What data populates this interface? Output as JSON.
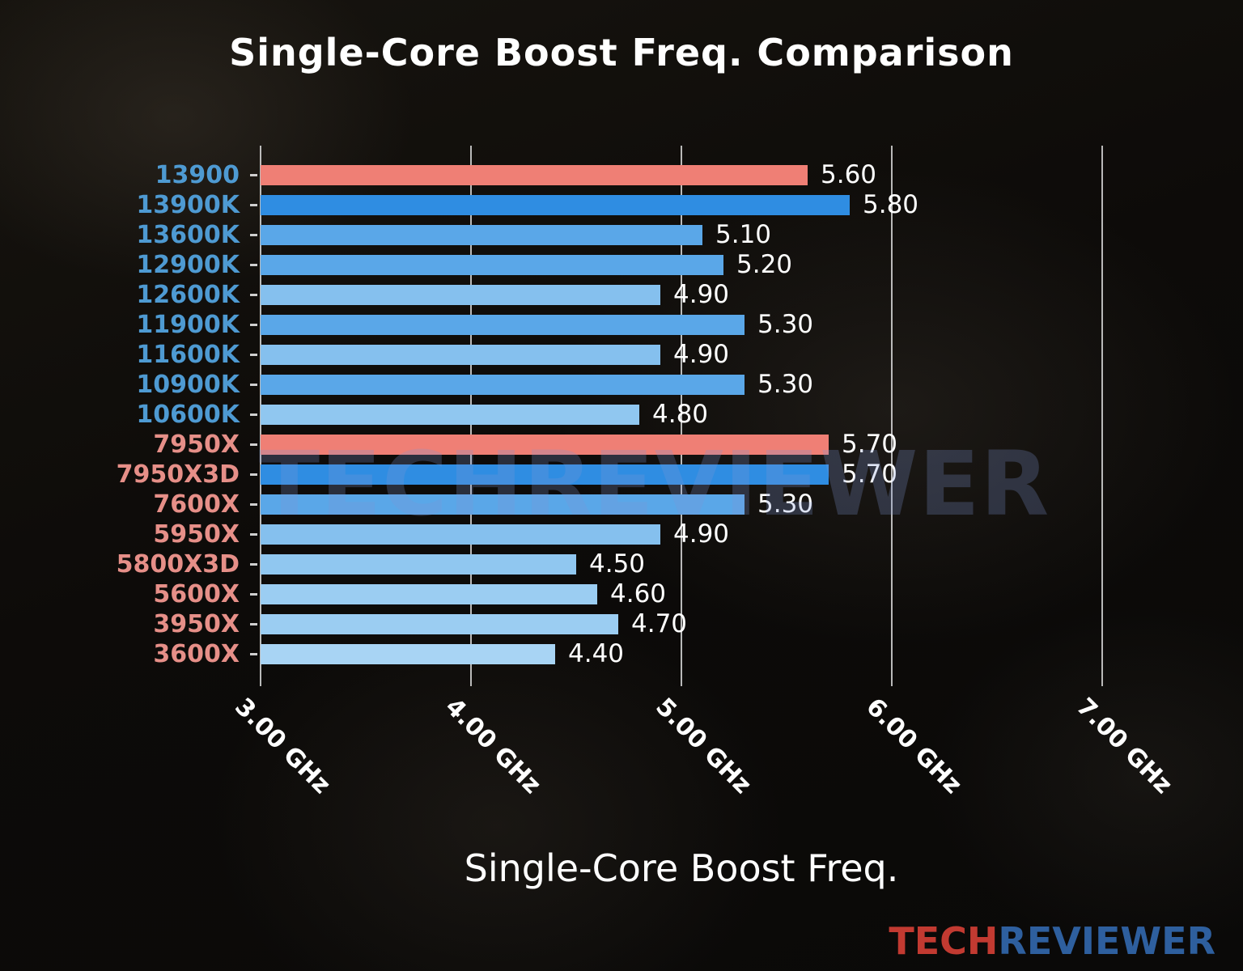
{
  "title": "Single-Core Boost Freq. Comparison",
  "watermark": "TECHREVIEWER",
  "logo": {
    "tech": "TECH",
    "reviewer": "REVIEWER"
  },
  "chart_data": {
    "type": "bar",
    "orientation": "horizontal",
    "title": "Single-Core Boost Freq. Comparison",
    "xlabel": "Single-Core Boost Freq.",
    "ylabel": "",
    "xlim": [
      3.0,
      7.5
    ],
    "grid": true,
    "legend": false,
    "x_ticks": [
      {
        "value": 3.0,
        "label": "3.00 GHz"
      },
      {
        "value": 4.0,
        "label": "4.00 GHz"
      },
      {
        "value": 5.0,
        "label": "5.00 GHz"
      },
      {
        "value": 6.0,
        "label": "6.00 GHz"
      },
      {
        "value": 7.0,
        "label": "7.00 GHz"
      }
    ],
    "categories": [
      "13900",
      "13900K",
      "13600K",
      "12900K",
      "12600K",
      "11900K",
      "11600K",
      "10900K",
      "10600K",
      "7950X",
      "7950X3D",
      "7600X",
      "5950X",
      "5800X3D",
      "5600X",
      "3950X",
      "3600X"
    ],
    "values": [
      5.6,
      5.8,
      5.1,
      5.2,
      4.9,
      5.3,
      4.9,
      5.3,
      4.8,
      5.7,
      5.7,
      5.3,
      4.9,
      4.5,
      4.6,
      4.7,
      4.4
    ],
    "value_labels": [
      "5.60",
      "5.80",
      "5.10",
      "5.20",
      "4.90",
      "5.30",
      "4.90",
      "5.30",
      "4.80",
      "5.70",
      "5.70",
      "5.30",
      "4.90",
      "4.50",
      "4.60",
      "4.70",
      "4.40"
    ],
    "bar_colors": [
      "#ef7f75",
      "#2f8de2",
      "#5aa7e8",
      "#5aa7e8",
      "#85c0ee",
      "#5aa7e8",
      "#85c0ee",
      "#5aa7e8",
      "#90c7f0",
      "#ef7f75",
      "#2f8de2",
      "#5aa7e8",
      "#85c0ee",
      "#90c7f0",
      "#9bcdf2",
      "#9bcdf2",
      "#a8d4f4"
    ],
    "label_colors": [
      "#4e9ad2",
      "#4e9ad2",
      "#4e9ad2",
      "#4e9ad2",
      "#4e9ad2",
      "#4e9ad2",
      "#4e9ad2",
      "#4e9ad2",
      "#4e9ad2",
      "#e68f88",
      "#e68f88",
      "#e68f88",
      "#e68f88",
      "#e68f88",
      "#e68f88",
      "#e68f88",
      "#e68f88"
    ],
    "highlight_color": "#ef7f75",
    "accent_blue": "#2f8de2"
  }
}
